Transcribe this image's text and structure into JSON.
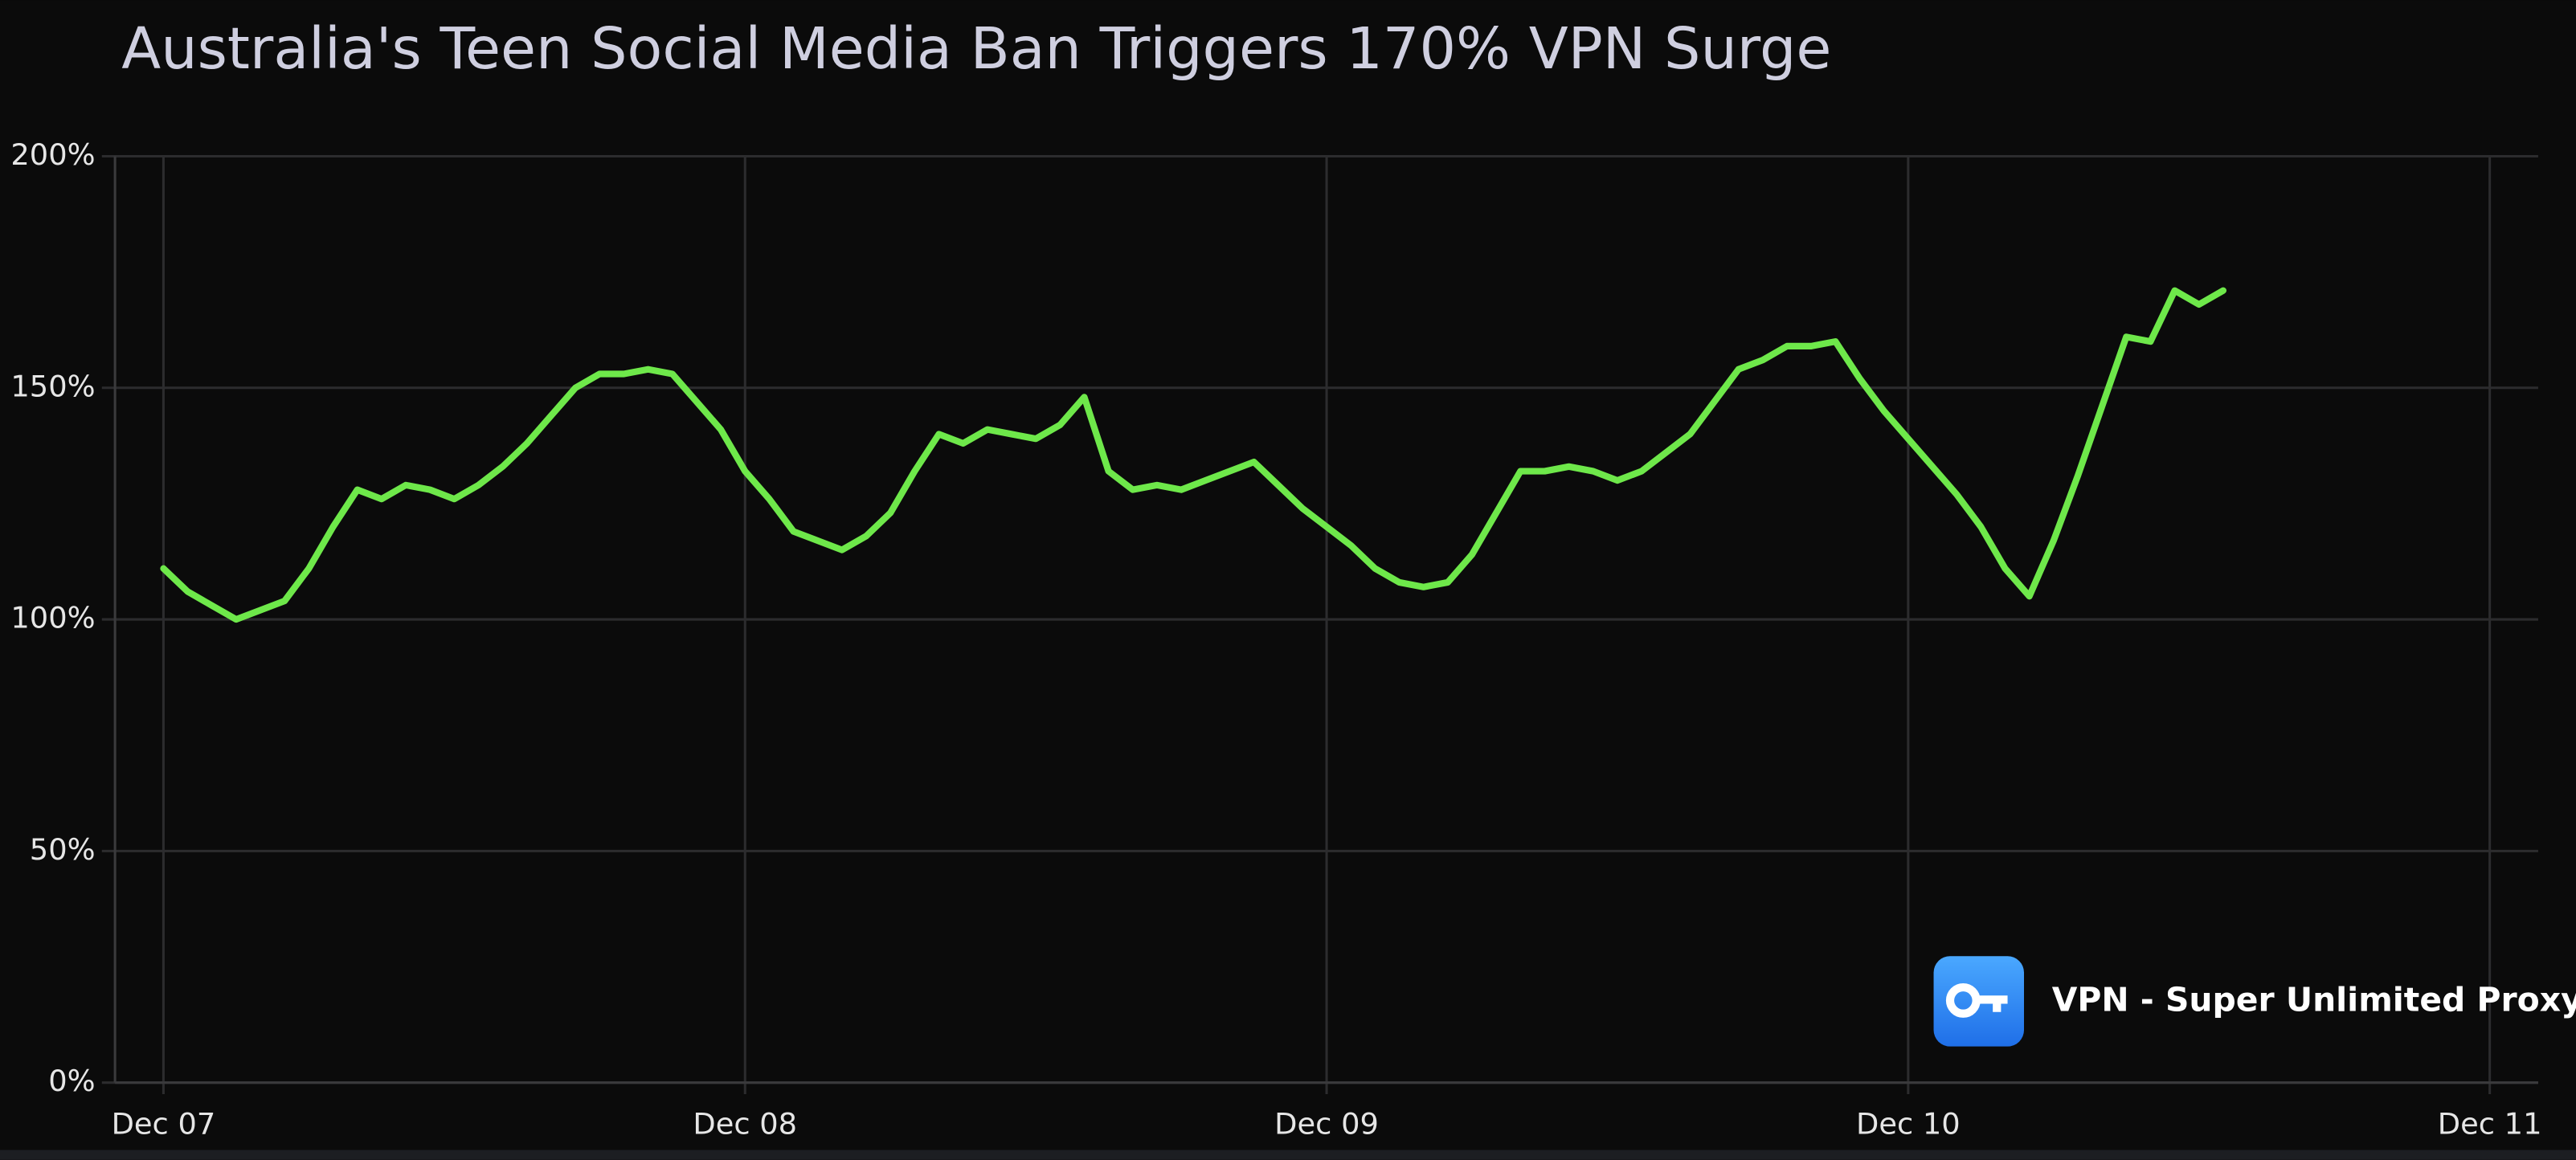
{
  "chart_data": {
    "type": "line",
    "title": "Australia's Teen Social Media Ban Triggers 170% VPN Surge",
    "badge": "VPN - Super Unlimited Proxy",
    "color": "#6ee84a",
    "x": [
      0,
      1,
      2,
      3,
      4,
      5,
      6,
      7,
      8,
      9,
      10,
      11,
      12,
      13,
      14,
      15,
      16,
      17,
      18,
      19,
      20,
      21,
      22,
      23,
      24,
      25,
      26,
      27,
      28,
      29,
      30,
      31,
      32,
      33,
      34,
      35,
      36,
      37,
      38,
      39,
      40,
      41,
      42,
      43,
      44,
      45,
      46,
      47,
      48,
      49,
      50,
      51,
      52,
      53,
      54,
      55,
      56,
      57,
      58,
      59,
      60,
      61,
      62,
      63,
      64,
      65,
      66,
      67,
      68,
      69,
      70,
      71,
      72,
      73,
      74,
      75,
      76,
      77,
      78,
      79,
      80,
      81,
      82,
      83,
      84,
      85
    ],
    "values": [
      111,
      106,
      103,
      100,
      102,
      104,
      111,
      120,
      128,
      126,
      129,
      128,
      126,
      129,
      133,
      138,
      144,
      150,
      153,
      153,
      154,
      153,
      147,
      141,
      132,
      126,
      119,
      117,
      115,
      118,
      123,
      132,
      140,
      138,
      141,
      140,
      139,
      142,
      148,
      132,
      128,
      129,
      128,
      130,
      132,
      134,
      129,
      124,
      120,
      116,
      111,
      108,
      107,
      108,
      114,
      123,
      132,
      132,
      133,
      132,
      130,
      132,
      136,
      140,
      147,
      154,
      156,
      159,
      159,
      160,
      152,
      145,
      139,
      133,
      127,
      120,
      111,
      105,
      117,
      131,
      146,
      161,
      160,
      171,
      168,
      171
    ],
    "xlim": [
      -2,
      98
    ],
    "xticks": [
      {
        "value": 0,
        "label": "Dec 07"
      },
      {
        "value": 24,
        "label": "Dec 08"
      },
      {
        "value": 48,
        "label": "Dec 09"
      },
      {
        "value": 72,
        "label": "Dec 10"
      },
      {
        "value": 96,
        "label": "Dec 11"
      }
    ],
    "ylim": [
      0,
      200
    ],
    "yticks": [
      {
        "value": 0,
        "label": "0%"
      },
      {
        "value": 50,
        "label": "50%"
      },
      {
        "value": 100,
        "label": "100%"
      },
      {
        "value": 150,
        "label": "150%"
      },
      {
        "value": 200,
        "label": "200%"
      }
    ],
    "grid": true
  }
}
